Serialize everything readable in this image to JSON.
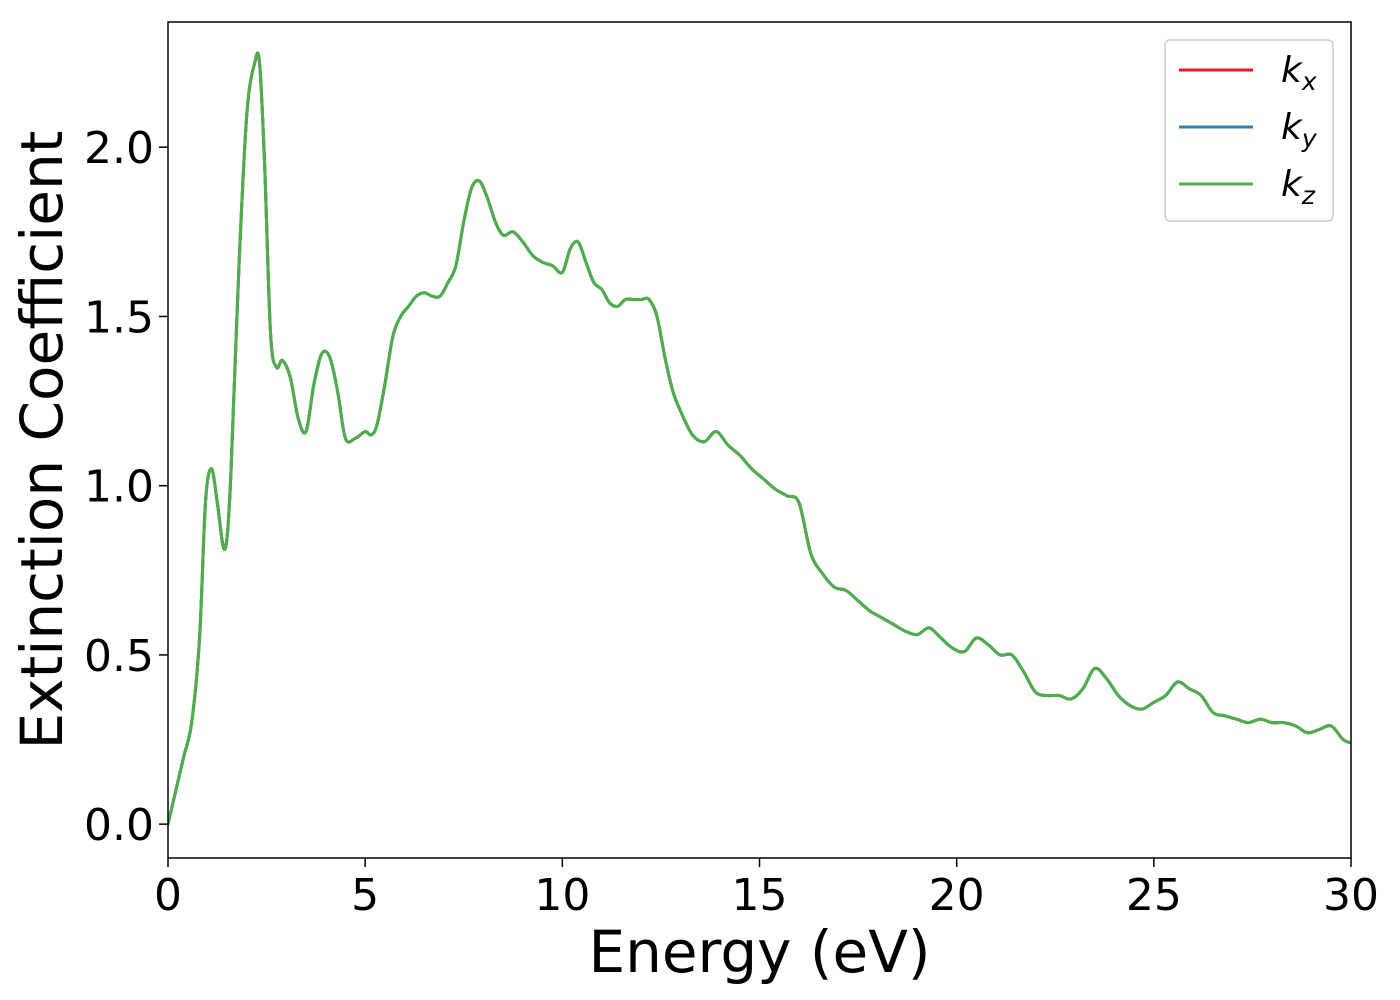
{
  "chart_data": {
    "type": "line",
    "title": "",
    "xlabel": "Energy (eV)",
    "ylabel": "Extinction Coefficient",
    "xlim": [
      0,
      30
    ],
    "ylim": [
      -0.1,
      2.37
    ],
    "xticks": [
      0,
      5,
      10,
      15,
      20,
      25,
      30
    ],
    "xtick_labels": [
      "0",
      "5",
      "10",
      "15",
      "20",
      "25",
      "30"
    ],
    "yticks": [
      0.0,
      0.5,
      1.0,
      1.5,
      2.0
    ],
    "ytick_labels": [
      "0.0",
      "0.5",
      "1.0",
      "1.5",
      "2.0"
    ],
    "grid": false,
    "legend_position": "top-right",
    "series": [
      {
        "name": "k",
        "subscript": "x",
        "color": "#e41a1c",
        "x": [
          0,
          0.2,
          0.4,
          0.6,
          0.8,
          0.95,
          1.1,
          1.25,
          1.4,
          1.5,
          1.6,
          1.8,
          2.0,
          2.2,
          2.32,
          2.45,
          2.6,
          2.75,
          2.9,
          3.1,
          3.3,
          3.5,
          3.7,
          3.9,
          4.1,
          4.3,
          4.5,
          4.75,
          5.0,
          5.15,
          5.3,
          5.5,
          5.7,
          5.9,
          6.1,
          6.3,
          6.5,
          6.7,
          6.9,
          7.1,
          7.3,
          7.5,
          7.7,
          7.9,
          8.1,
          8.3,
          8.5,
          8.75,
          9.0,
          9.25,
          9.5,
          9.75,
          10.0,
          10.2,
          10.4,
          10.6,
          10.8,
          11.0,
          11.2,
          11.4,
          11.6,
          11.8,
          12.0,
          12.2,
          12.4,
          12.6,
          12.8,
          13.0,
          13.3,
          13.6,
          13.9,
          14.2,
          14.5,
          14.8,
          15.1,
          15.4,
          15.7,
          16.0,
          16.3,
          16.6,
          16.9,
          17.2,
          17.5,
          17.8,
          18.1,
          18.4,
          18.7,
          19.0,
          19.3,
          19.6,
          19.9,
          20.2,
          20.5,
          20.8,
          21.1,
          21.4,
          21.7,
          22.0,
          22.3,
          22.6,
          22.9,
          23.2,
          23.5,
          23.8,
          24.1,
          24.4,
          24.7,
          25.0,
          25.3,
          25.6,
          25.9,
          26.2,
          26.5,
          26.8,
          27.1,
          27.4,
          27.7,
          28.0,
          28.3,
          28.6,
          28.9,
          29.2,
          29.5,
          29.8,
          30.0
        ],
        "y": [
          0.0,
          0.1,
          0.2,
          0.3,
          0.55,
          0.95,
          1.05,
          0.95,
          0.82,
          0.85,
          1.05,
          1.65,
          2.1,
          2.25,
          2.25,
          1.95,
          1.45,
          1.35,
          1.37,
          1.32,
          1.2,
          1.16,
          1.3,
          1.39,
          1.38,
          1.28,
          1.14,
          1.14,
          1.16,
          1.15,
          1.18,
          1.3,
          1.44,
          1.5,
          1.53,
          1.56,
          1.57,
          1.56,
          1.56,
          1.6,
          1.65,
          1.78,
          1.88,
          1.9,
          1.85,
          1.78,
          1.74,
          1.75,
          1.72,
          1.68,
          1.66,
          1.65,
          1.63,
          1.7,
          1.72,
          1.66,
          1.6,
          1.58,
          1.54,
          1.53,
          1.55,
          1.55,
          1.55,
          1.55,
          1.5,
          1.38,
          1.28,
          1.22,
          1.15,
          1.13,
          1.16,
          1.12,
          1.09,
          1.05,
          1.02,
          0.99,
          0.97,
          0.95,
          0.8,
          0.74,
          0.7,
          0.69,
          0.66,
          0.63,
          0.61,
          0.59,
          0.57,
          0.56,
          0.58,
          0.55,
          0.52,
          0.51,
          0.55,
          0.53,
          0.5,
          0.5,
          0.45,
          0.39,
          0.38,
          0.38,
          0.37,
          0.4,
          0.46,
          0.43,
          0.38,
          0.35,
          0.34,
          0.36,
          0.38,
          0.42,
          0.4,
          0.38,
          0.33,
          0.32,
          0.31,
          0.3,
          0.31,
          0.3,
          0.3,
          0.29,
          0.27,
          0.28,
          0.29,
          0.25,
          0.24
        ]
      },
      {
        "name": "k",
        "subscript": "y",
        "color": "#377eb8",
        "x": [
          0,
          0.2,
          0.4,
          0.6,
          0.8,
          0.95,
          1.1,
          1.25,
          1.4,
          1.5,
          1.6,
          1.8,
          2.0,
          2.2,
          2.32,
          2.45,
          2.6,
          2.75,
          2.9,
          3.1,
          3.3,
          3.5,
          3.7,
          3.9,
          4.1,
          4.3,
          4.5,
          4.75,
          5.0,
          5.15,
          5.3,
          5.5,
          5.7,
          5.9,
          6.1,
          6.3,
          6.5,
          6.7,
          6.9,
          7.1,
          7.3,
          7.5,
          7.7,
          7.9,
          8.1,
          8.3,
          8.5,
          8.75,
          9.0,
          9.25,
          9.5,
          9.75,
          10.0,
          10.2,
          10.4,
          10.6,
          10.8,
          11.0,
          11.2,
          11.4,
          11.6,
          11.8,
          12.0,
          12.2,
          12.4,
          12.6,
          12.8,
          13.0,
          13.3,
          13.6,
          13.9,
          14.2,
          14.5,
          14.8,
          15.1,
          15.4,
          15.7,
          16.0,
          16.3,
          16.6,
          16.9,
          17.2,
          17.5,
          17.8,
          18.1,
          18.4,
          18.7,
          19.0,
          19.3,
          19.6,
          19.9,
          20.2,
          20.5,
          20.8,
          21.1,
          21.4,
          21.7,
          22.0,
          22.3,
          22.6,
          22.9,
          23.2,
          23.5,
          23.8,
          24.1,
          24.4,
          24.7,
          25.0,
          25.3,
          25.6,
          25.9,
          26.2,
          26.5,
          26.8,
          27.1,
          27.4,
          27.7,
          28.0,
          28.3,
          28.6,
          28.9,
          29.2,
          29.5,
          29.8,
          30.0
        ],
        "y": [
          0.0,
          0.1,
          0.2,
          0.3,
          0.55,
          0.95,
          1.05,
          0.95,
          0.82,
          0.85,
          1.05,
          1.65,
          2.1,
          2.25,
          2.25,
          1.95,
          1.45,
          1.35,
          1.37,
          1.32,
          1.2,
          1.16,
          1.3,
          1.39,
          1.38,
          1.28,
          1.14,
          1.14,
          1.16,
          1.15,
          1.18,
          1.3,
          1.44,
          1.5,
          1.53,
          1.56,
          1.57,
          1.56,
          1.56,
          1.6,
          1.65,
          1.78,
          1.88,
          1.9,
          1.85,
          1.78,
          1.74,
          1.75,
          1.72,
          1.68,
          1.66,
          1.65,
          1.63,
          1.7,
          1.72,
          1.66,
          1.6,
          1.58,
          1.54,
          1.53,
          1.55,
          1.55,
          1.55,
          1.55,
          1.5,
          1.38,
          1.28,
          1.22,
          1.15,
          1.13,
          1.16,
          1.12,
          1.09,
          1.05,
          1.02,
          0.99,
          0.97,
          0.95,
          0.8,
          0.74,
          0.7,
          0.69,
          0.66,
          0.63,
          0.61,
          0.59,
          0.57,
          0.56,
          0.58,
          0.55,
          0.52,
          0.51,
          0.55,
          0.53,
          0.5,
          0.5,
          0.45,
          0.39,
          0.38,
          0.38,
          0.37,
          0.4,
          0.46,
          0.43,
          0.38,
          0.35,
          0.34,
          0.36,
          0.38,
          0.42,
          0.4,
          0.38,
          0.33,
          0.32,
          0.31,
          0.3,
          0.31,
          0.3,
          0.3,
          0.29,
          0.27,
          0.28,
          0.29,
          0.25,
          0.24
        ]
      },
      {
        "name": "k",
        "subscript": "z",
        "color": "#4daf4a",
        "x": [
          0,
          0.2,
          0.4,
          0.6,
          0.8,
          0.95,
          1.1,
          1.25,
          1.4,
          1.5,
          1.6,
          1.8,
          2.0,
          2.2,
          2.32,
          2.45,
          2.6,
          2.75,
          2.9,
          3.1,
          3.3,
          3.5,
          3.7,
          3.9,
          4.1,
          4.3,
          4.5,
          4.75,
          5.0,
          5.15,
          5.3,
          5.5,
          5.7,
          5.9,
          6.1,
          6.3,
          6.5,
          6.7,
          6.9,
          7.1,
          7.3,
          7.5,
          7.7,
          7.9,
          8.1,
          8.3,
          8.5,
          8.75,
          9.0,
          9.25,
          9.5,
          9.75,
          10.0,
          10.2,
          10.4,
          10.6,
          10.8,
          11.0,
          11.2,
          11.4,
          11.6,
          11.8,
          12.0,
          12.2,
          12.4,
          12.6,
          12.8,
          13.0,
          13.3,
          13.6,
          13.9,
          14.2,
          14.5,
          14.8,
          15.1,
          15.4,
          15.7,
          16.0,
          16.3,
          16.6,
          16.9,
          17.2,
          17.5,
          17.8,
          18.1,
          18.4,
          18.7,
          19.0,
          19.3,
          19.6,
          19.9,
          20.2,
          20.5,
          20.8,
          21.1,
          21.4,
          21.7,
          22.0,
          22.3,
          22.6,
          22.9,
          23.2,
          23.5,
          23.8,
          24.1,
          24.4,
          24.7,
          25.0,
          25.3,
          25.6,
          25.9,
          26.2,
          26.5,
          26.8,
          27.1,
          27.4,
          27.7,
          28.0,
          28.3,
          28.6,
          28.9,
          29.2,
          29.5,
          29.8,
          30.0
        ],
        "y": [
          0.0,
          0.1,
          0.2,
          0.3,
          0.55,
          0.95,
          1.05,
          0.95,
          0.82,
          0.85,
          1.05,
          1.65,
          2.1,
          2.25,
          2.25,
          1.95,
          1.45,
          1.35,
          1.37,
          1.32,
          1.2,
          1.16,
          1.3,
          1.39,
          1.38,
          1.28,
          1.14,
          1.14,
          1.16,
          1.15,
          1.18,
          1.3,
          1.44,
          1.5,
          1.53,
          1.56,
          1.57,
          1.56,
          1.56,
          1.6,
          1.65,
          1.78,
          1.88,
          1.9,
          1.85,
          1.78,
          1.74,
          1.75,
          1.72,
          1.68,
          1.66,
          1.65,
          1.63,
          1.7,
          1.72,
          1.66,
          1.6,
          1.58,
          1.54,
          1.53,
          1.55,
          1.55,
          1.55,
          1.55,
          1.5,
          1.38,
          1.28,
          1.22,
          1.15,
          1.13,
          1.16,
          1.12,
          1.09,
          1.05,
          1.02,
          0.99,
          0.97,
          0.95,
          0.8,
          0.74,
          0.7,
          0.69,
          0.66,
          0.63,
          0.61,
          0.59,
          0.57,
          0.56,
          0.58,
          0.55,
          0.52,
          0.51,
          0.55,
          0.53,
          0.5,
          0.5,
          0.45,
          0.39,
          0.38,
          0.38,
          0.37,
          0.4,
          0.46,
          0.43,
          0.38,
          0.35,
          0.34,
          0.36,
          0.38,
          0.42,
          0.4,
          0.38,
          0.33,
          0.32,
          0.31,
          0.3,
          0.31,
          0.3,
          0.3,
          0.29,
          0.27,
          0.28,
          0.29,
          0.25,
          0.24
        ]
      }
    ]
  }
}
